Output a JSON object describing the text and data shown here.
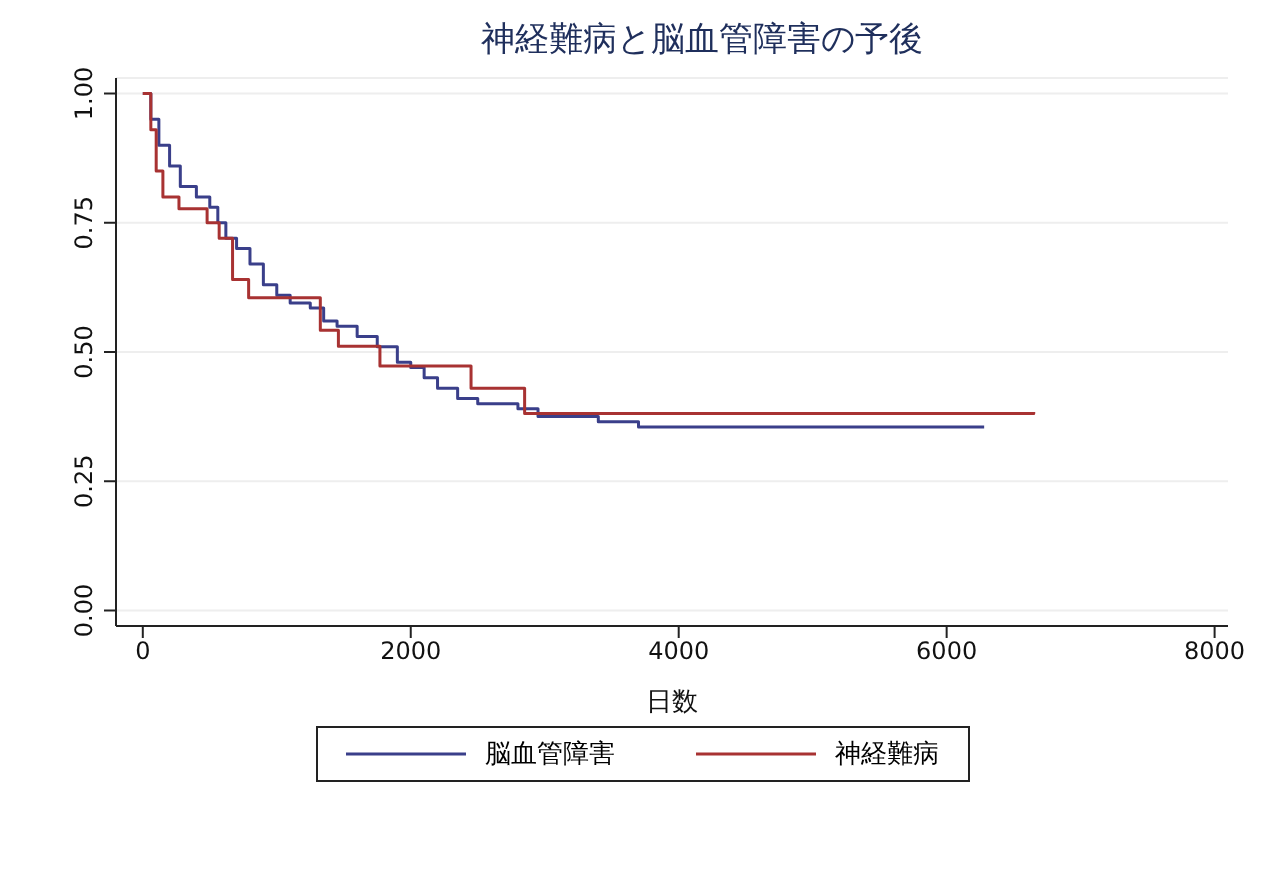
{
  "chart_data": {
    "type": "step",
    "title": "神経難病と脳血管障害の予後",
    "xlabel": "日数",
    "xlim": [
      -200,
      8100
    ],
    "xticks": [
      0,
      2000,
      4000,
      6000,
      8000
    ],
    "ylim": [
      -0.03,
      1.03
    ],
    "yticks": [
      {
        "value": 0,
        "label": "0.00"
      },
      {
        "value": 0.25,
        "label": "0.25"
      },
      {
        "value": 0.5,
        "label": "0.50"
      },
      {
        "value": 0.75,
        "label": "0.75"
      },
      {
        "value": 1,
        "label": "1.00"
      }
    ],
    "grid": "y",
    "legend": "bottom",
    "line_style": "solid",
    "marker": "none",
    "series": [
      {
        "name": "脳血管障害",
        "color": "#3a3f8a",
        "x": [
          0,
          60,
          120,
          200,
          280,
          400,
          500,
          560,
          620,
          700,
          800,
          900,
          1000,
          1100,
          1250,
          1350,
          1450,
          1600,
          1750,
          1900,
          2000,
          2100,
          2200,
          2350,
          2500,
          2800,
          2950,
          3400,
          3700,
          6280
        ],
        "values": [
          1,
          0.95,
          0.9,
          0.86,
          0.82,
          0.8,
          0.78,
          0.75,
          0.72,
          0.7,
          0.67,
          0.63,
          0.61,
          0.595,
          0.585,
          0.56,
          0.55,
          0.53,
          0.51,
          0.48,
          0.47,
          0.45,
          0.43,
          0.41,
          0.4,
          0.39,
          0.375,
          0.365,
          0.355,
          0.355
        ]
      },
      {
        "name": "神経難病",
        "color": "#a83232",
        "x": [
          0,
          60,
          100,
          150,
          270,
          480,
          570,
          670,
          790,
          1325,
          1460,
          1770,
          2450,
          2850,
          6650
        ],
        "values": [
          1,
          0.93,
          0.85,
          0.8,
          0.777,
          0.75,
          0.72,
          0.64,
          0.605,
          0.542,
          0.511,
          0.473,
          0.43,
          0.381,
          0.384
        ]
      }
    ]
  }
}
